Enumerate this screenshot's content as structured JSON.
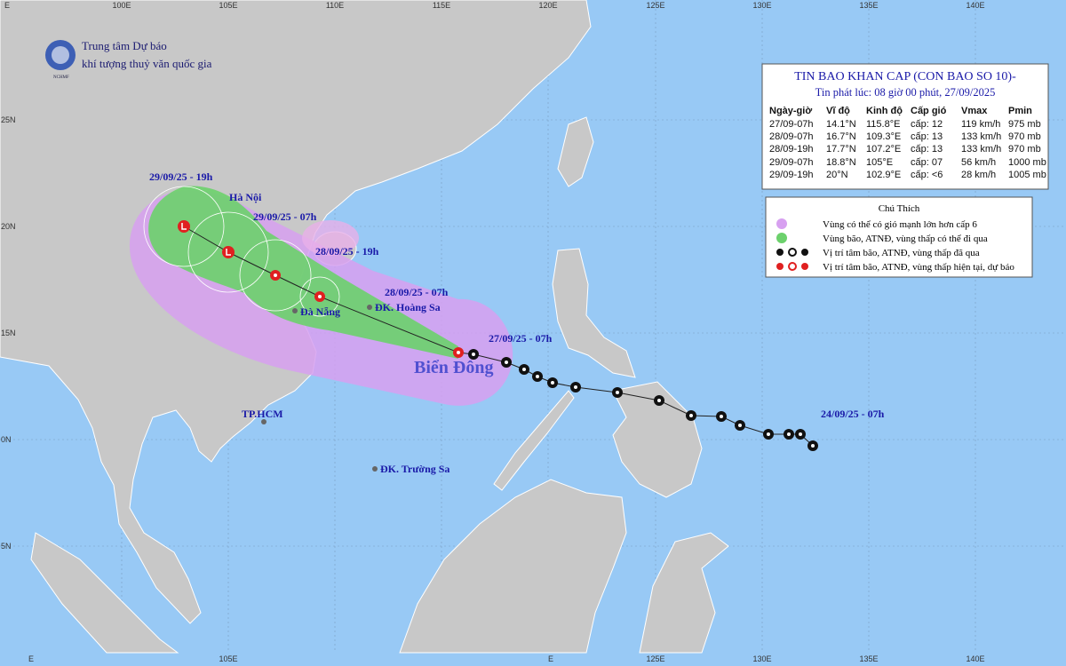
{
  "logo": {
    "line1": "Trung tâm Dự báo",
    "line2": "khí tượng thuỷ văn quốc gia",
    "abbr": "NCHMF"
  },
  "grid": {
    "top_labels": [
      "E",
      "100E",
      "105E",
      "110E",
      "115E",
      "120E",
      "125E",
      "130E",
      "135E",
      "140E"
    ],
    "bottom_labels": [
      "E",
      "105E",
      "E",
      "125E",
      "130E",
      "135E",
      "140E"
    ],
    "left_labels": [
      "25N",
      "20N",
      "15N",
      "0N",
      "5N"
    ]
  },
  "bulletin": {
    "title": "TIN BAO KHAN CAP (CON BAO SO 10)-",
    "issued": "Tin phát lúc: 08 giờ 00 phút, 27/09/2025",
    "headers": [
      "Ngày-giờ",
      "Vĩ độ",
      "Kinh độ",
      "Cấp gió",
      "Vmax",
      "Pmin"
    ],
    "rows": [
      [
        "27/09-07h",
        "14.1°N",
        "115.8°E",
        "cấp: 12",
        "119 km/h",
        "975 mb"
      ],
      [
        "28/09-07h",
        "16.7°N",
        "109.3°E",
        "cấp: 13",
        "133 km/h",
        "970 mb"
      ],
      [
        "28/09-19h",
        "17.7°N",
        "107.2°E",
        "cấp: 13",
        "133 km/h",
        "970 mb"
      ],
      [
        "29/09-07h",
        "18.8°N",
        "105°E",
        "cấp: 07",
        "56 km/h",
        "1000 mb"
      ],
      [
        "29/09-19h",
        "20°N",
        "102.9°E",
        "cấp: <6",
        "28 km/h",
        "1005 mb"
      ]
    ]
  },
  "legend": {
    "title": "Chú Thích",
    "items": [
      "Vùng có thể có gió mạnh lớn hơn cấp 6",
      "Vùng bão, ATNĐ, vùng thấp có thể đi qua",
      "Vị trí tâm bão, ATNĐ, vùng thấp đã qua",
      "Vị trí tâm bão, ATNĐ, vùng thấp hiện tại, dự báo"
    ]
  },
  "track_labels": [
    "29/09/25 - 19h",
    "29/09/25 - 07h",
    "28/09/25 - 19h",
    "28/09/25 - 07h",
    "27/09/25 - 07h",
    "24/09/25 - 07h"
  ],
  "places": [
    "Hà Nội",
    "Đà Nẵng",
    "ĐK. Hoàng Sa",
    "TP.HCM",
    "ĐK. Trường Sa"
  ],
  "sea_name": "Biển Đông"
}
